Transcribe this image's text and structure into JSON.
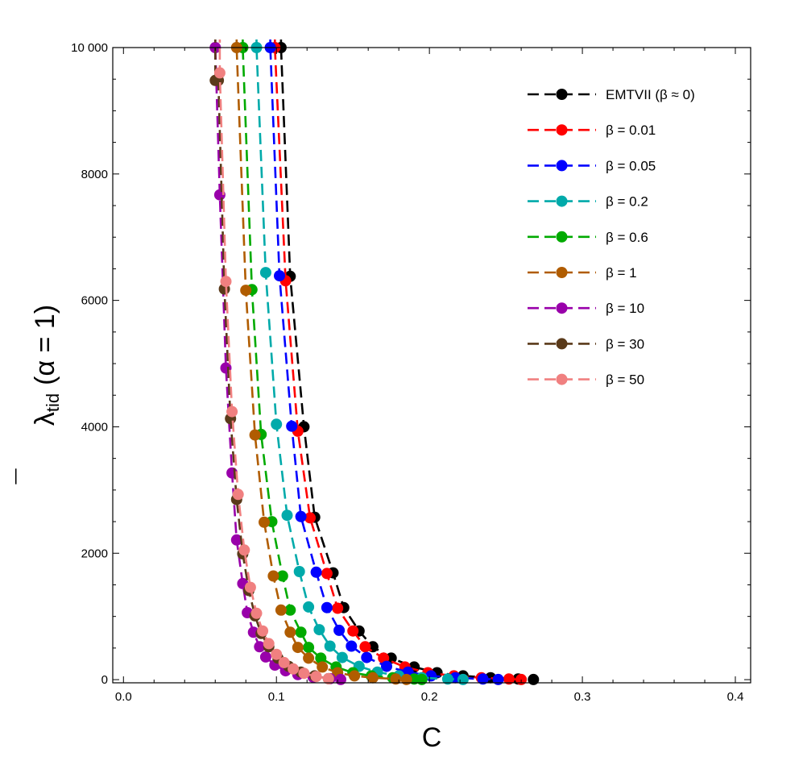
{
  "chart_data": {
    "type": "line",
    "title": "",
    "xlabel": "C",
    "ylabel": {
      "main": "λ",
      "sub": "tid",
      "suffix": "(α = 1)",
      "bar": "¯"
    },
    "xlim": [
      -0.007,
      0.41
    ],
    "ylim": [
      -50,
      10000
    ],
    "x_ticks": [
      {
        "value": 0.0,
        "label": "0.0"
      },
      {
        "value": 0.1,
        "label": "0.1"
      },
      {
        "value": 0.2,
        "label": "0.2"
      },
      {
        "value": 0.3,
        "label": "0.3"
      },
      {
        "value": 0.4,
        "label": "0.4"
      }
    ],
    "y_ticks": [
      {
        "value": 0,
        "label": "0"
      },
      {
        "value": 2000,
        "label": "2000"
      },
      {
        "value": 4000,
        "label": "4000"
      },
      {
        "value": 6000,
        "label": "6000"
      },
      {
        "value": 8000,
        "label": "8000"
      },
      {
        "value": 10000,
        "label": "10 000"
      }
    ],
    "grid": false,
    "legend_position": "top-right",
    "line_style": "dashed with circle markers",
    "series": [
      {
        "name": "EMTVII (β ≈ 0)",
        "color": "#000000",
        "x": [
          0.103,
          0.109,
          0.118,
          0.125,
          0.137,
          0.144,
          0.154,
          0.163,
          0.175,
          0.19,
          0.205,
          0.222,
          0.24,
          0.258,
          0.268
        ],
        "y": [
          10000,
          6380,
          4000,
          2570,
          1690,
          1140,
          770,
          520,
          340,
          200,
          110,
          60,
          30,
          10,
          2
        ]
      },
      {
        "name": "β = 0.01",
        "color": "#ff0000",
        "x": [
          0.099,
          0.106,
          0.114,
          0.122,
          0.133,
          0.14,
          0.15,
          0.158,
          0.17,
          0.184,
          0.199,
          0.216,
          0.234,
          0.252,
          0.26
        ],
        "y": [
          10000,
          6310,
          3930,
          2560,
          1680,
          1130,
          770,
          520,
          340,
          200,
          110,
          60,
          30,
          10,
          2
        ]
      },
      {
        "name": "β = 0.05",
        "color": "#0000ff",
        "x": [
          0.096,
          0.102,
          0.11,
          0.116,
          0.126,
          0.133,
          0.141,
          0.149,
          0.159,
          0.172,
          0.186,
          0.201,
          0.217,
          0.235,
          0.245
        ],
        "y": [
          10000,
          6390,
          4010,
          2580,
          1700,
          1140,
          780,
          530,
          350,
          210,
          120,
          60,
          30,
          10,
          2
        ]
      },
      {
        "name": "β = 0.2",
        "color": "#00aaaa",
        "x": [
          0.087,
          0.093,
          0.1,
          0.107,
          0.115,
          0.121,
          0.128,
          0.135,
          0.143,
          0.154,
          0.166,
          0.18,
          0.195,
          0.212,
          0.222
        ],
        "y": [
          10000,
          6440,
          4040,
          2600,
          1710,
          1150,
          790,
          530,
          350,
          210,
          120,
          60,
          30,
          10,
          2
        ]
      },
      {
        "name": "β = 0.6",
        "color": "#00aa00",
        "x": [
          0.078,
          0.084,
          0.09,
          0.097,
          0.104,
          0.109,
          0.116,
          0.121,
          0.129,
          0.139,
          0.15,
          0.162,
          0.176,
          0.19,
          0.195
        ],
        "y": [
          10000,
          6170,
          3880,
          2500,
          1640,
          1100,
          750,
          510,
          340,
          200,
          110,
          60,
          30,
          10,
          2
        ]
      },
      {
        "name": "β = 1",
        "color": "#b05c00",
        "x": [
          0.074,
          0.08,
          0.086,
          0.092,
          0.098,
          0.103,
          0.109,
          0.114,
          0.121,
          0.13,
          0.14,
          0.151,
          0.163,
          0.178,
          0.185
        ],
        "y": [
          10000,
          6160,
          3870,
          2490,
          1640,
          1100,
          750,
          510,
          340,
          200,
          110,
          60,
          30,
          10,
          2
        ]
      },
      {
        "name": "β = 10",
        "color": "#9900aa",
        "x": [
          0.06,
          0.063,
          0.067,
          0.071,
          0.074,
          0.078,
          0.081,
          0.085,
          0.089,
          0.093,
          0.099,
          0.106,
          0.114,
          0.124,
          0.135,
          0.142
        ],
        "y": [
          10000,
          7670,
          4930,
          3270,
          2210,
          1520,
          1060,
          750,
          520,
          360,
          230,
          140,
          80,
          40,
          15,
          2
        ]
      },
      {
        "name": "β = 30",
        "color": "#5a3a1a",
        "x": [
          0.06,
          0.062,
          0.066,
          0.07,
          0.074,
          0.078,
          0.082,
          0.086,
          0.09,
          0.095,
          0.101,
          0.108,
          0.116,
          0.125,
          0.134
        ],
        "y": [
          9480,
          9480,
          6180,
          4130,
          2850,
          1990,
          1410,
          1010,
          730,
          520,
          340,
          210,
          120,
          60,
          15
        ]
      },
      {
        "name": "β = 50",
        "color": "#f08080",
        "x": [
          0.063,
          0.067,
          0.071,
          0.075,
          0.079,
          0.083,
          0.087,
          0.091,
          0.095,
          0.1,
          0.105,
          0.111,
          0.118,
          0.126,
          0.134
        ],
        "y": [
          9600,
          6300,
          4240,
          2930,
          2050,
          1460,
          1050,
          770,
          570,
          400,
          270,
          170,
          100,
          50,
          15
        ]
      }
    ]
  }
}
